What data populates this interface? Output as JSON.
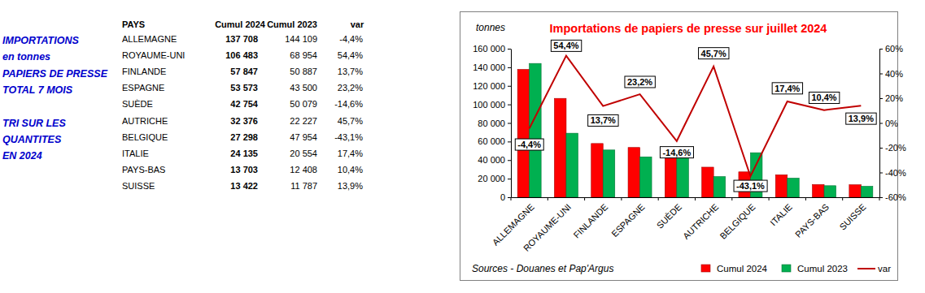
{
  "side_note": [
    [
      "IMPORTATIONS",
      "en tonnes",
      "PAPIERS DE PRESSE",
      "TOTAL 7 MOIS"
    ],
    [
      "TRI SUR LES",
      "QUANTITES",
      "EN 2024"
    ]
  ],
  "table": {
    "header": [
      "PAYS",
      "Cumul 2024",
      "Cumul 2023",
      "var"
    ],
    "rows": [
      [
        "ALLEMAGNE",
        "137 708",
        "144 109",
        "-4,4%"
      ],
      [
        "ROYAUME-UNI",
        "106 483",
        "68 954",
        "54,4%"
      ],
      [
        "FINLANDE",
        "57 847",
        "50 887",
        "13,7%"
      ],
      [
        "ESPAGNE",
        "53 573",
        "43 500",
        "23,2%"
      ],
      [
        "SUÈDE",
        "42 754",
        "50 079",
        "-14,6%"
      ],
      [
        "AUTRICHE",
        "32 376",
        "22 227",
        "45,7%"
      ],
      [
        "BELGIQUE",
        "27 298",
        "47 954",
        "-43,1%"
      ],
      [
        "ITALIE",
        "24 135",
        "20 554",
        "17,4%"
      ],
      [
        "PAYS-BAS",
        "13 703",
        "12 408",
        "10,4%"
      ],
      [
        "SUISSE",
        "13 422",
        "11 787",
        "13,9%"
      ]
    ]
  },
  "chart_data": {
    "type": "bar",
    "title": "Importations de papiers de presse sur juillet 2024",
    "y_label": "tonnes",
    "source": "Sources - Douanes  et Pap'Argus",
    "categories": [
      "ALLEMAGNE",
      "ROYAUME-UNI",
      "FINLANDE",
      "ESPAGNE",
      "SUÈDE",
      "AUTRICHE",
      "BELGIQUE",
      "ITALIE",
      "PAYS-BAS",
      "SUISSE"
    ],
    "series": [
      {
        "name": "Cumul 2024",
        "type": "bar",
        "color": "#ff0000",
        "values": [
          137708,
          106483,
          57847,
          53573,
          42754,
          32376,
          27298,
          24135,
          13703,
          13422
        ]
      },
      {
        "name": "Cumul 2023",
        "type": "bar",
        "color": "#00b050",
        "values": [
          144109,
          68954,
          50887,
          43500,
          50079,
          22227,
          47954,
          20554,
          12408,
          11787
        ]
      },
      {
        "name": "var",
        "type": "line",
        "axis": "y2",
        "color": "#c00000",
        "line_style": "solid",
        "marker": "none",
        "data_labels": true,
        "values": [
          -4.4,
          54.4,
          13.7,
          23.2,
          -14.6,
          45.7,
          -43.1,
          17.4,
          10.4,
          13.9
        ],
        "value_labels": [
          "-4,4%",
          "54,4%",
          "13,7%",
          "23,2%",
          "-14,6%",
          "45,7%",
          "-43,1%",
          "17,4%",
          "10,4%",
          "13,9%"
        ]
      }
    ],
    "ylim": [
      0,
      160000
    ],
    "yticks": [
      0,
      {
        "value": 20000,
        "label": "20 000"
      },
      {
        "value": 40000,
        "label": "40 000"
      },
      {
        "value": 60000,
        "label": "60 000"
      },
      {
        "value": 80000,
        "label": "80 000"
      },
      {
        "value": 100000,
        "label": "100 000"
      },
      {
        "value": 120000,
        "label": "120 000"
      },
      {
        "value": 140000,
        "label": "140 000"
      },
      {
        "value": 160000,
        "label": "160 000"
      }
    ],
    "y2lim": [
      -60,
      60
    ],
    "y2ticks": [
      {
        "value": -60,
        "label": "-60%"
      },
      {
        "value": -40,
        "label": "-40%"
      },
      {
        "value": -20,
        "label": "-20%"
      },
      {
        "value": 0,
        "label": "0%"
      },
      {
        "value": 20,
        "label": "20%"
      },
      {
        "value": 40,
        "label": "40%"
      },
      {
        "value": 60,
        "label": "60%"
      }
    ],
    "grid": false,
    "legend": "bottom-right"
  }
}
